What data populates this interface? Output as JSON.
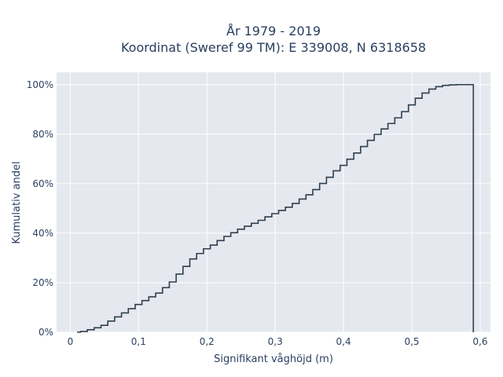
{
  "chart_data": {
    "type": "line",
    "line_shape": "step",
    "title_line1": "År 1979 - 2019",
    "title_line2": "Koordinat (Sweref 99 TM): E 339008, N 6318658",
    "xlabel": "Signifikant våghöjd (m)",
    "ylabel": "Kumulativ andel",
    "xlim": [
      -0.02,
      0.615
    ],
    "ylim": [
      0,
      1.05
    ],
    "x_ticks": [
      0,
      0.1,
      0.2,
      0.3,
      0.4,
      0.5,
      0.6
    ],
    "x_tick_labels": [
      "0",
      "0,1",
      "0,2",
      "0,3",
      "0,4",
      "0,5",
      "0,6"
    ],
    "y_ticks": [
      0,
      0.2,
      0.4,
      0.6,
      0.8,
      1.0
    ],
    "y_tick_labels": [
      "0%",
      "20%",
      "40%",
      "60%",
      "80%",
      "100%"
    ],
    "grid": true,
    "colors": {
      "line": "#2f3e4e",
      "plot_bg": "#e5e8ef",
      "grid": "#ffffff",
      "text": "#2a3f5f"
    },
    "series": [
      {
        "x": [
          0.01,
          0.02,
          0.03,
          0.04,
          0.05,
          0.06,
          0.07,
          0.08,
          0.09,
          0.1,
          0.11,
          0.12,
          0.13,
          0.14,
          0.15,
          0.16,
          0.17,
          0.18,
          0.19,
          0.2,
          0.21,
          0.22,
          0.23,
          0.24,
          0.25,
          0.26,
          0.27,
          0.28,
          0.29,
          0.3,
          0.31,
          0.32,
          0.33,
          0.34,
          0.35,
          0.36,
          0.37,
          0.38,
          0.39,
          0.4,
          0.41,
          0.42,
          0.43,
          0.44,
          0.45,
          0.46,
          0.47,
          0.48,
          0.49,
          0.5,
          0.51,
          0.52,
          0.53,
          0.54,
          0.55,
          0.56,
          0.57,
          0.58,
          0.59
        ],
        "y": [
          0.0,
          0.003,
          0.01,
          0.018,
          0.028,
          0.045,
          0.062,
          0.078,
          0.095,
          0.112,
          0.128,
          0.143,
          0.158,
          0.18,
          0.203,
          0.235,
          0.266,
          0.296,
          0.318,
          0.337,
          0.352,
          0.37,
          0.387,
          0.402,
          0.416,
          0.428,
          0.44,
          0.452,
          0.466,
          0.479,
          0.492,
          0.505,
          0.52,
          0.538,
          0.555,
          0.576,
          0.601,
          0.626,
          0.652,
          0.674,
          0.699,
          0.724,
          0.75,
          0.775,
          0.799,
          0.821,
          0.843,
          0.866,
          0.891,
          0.918,
          0.945,
          0.966,
          0.982,
          0.992,
          0.997,
          0.999,
          1.0,
          1.0,
          1.0
        ],
        "end_drop_to": 0.0
      }
    ]
  }
}
